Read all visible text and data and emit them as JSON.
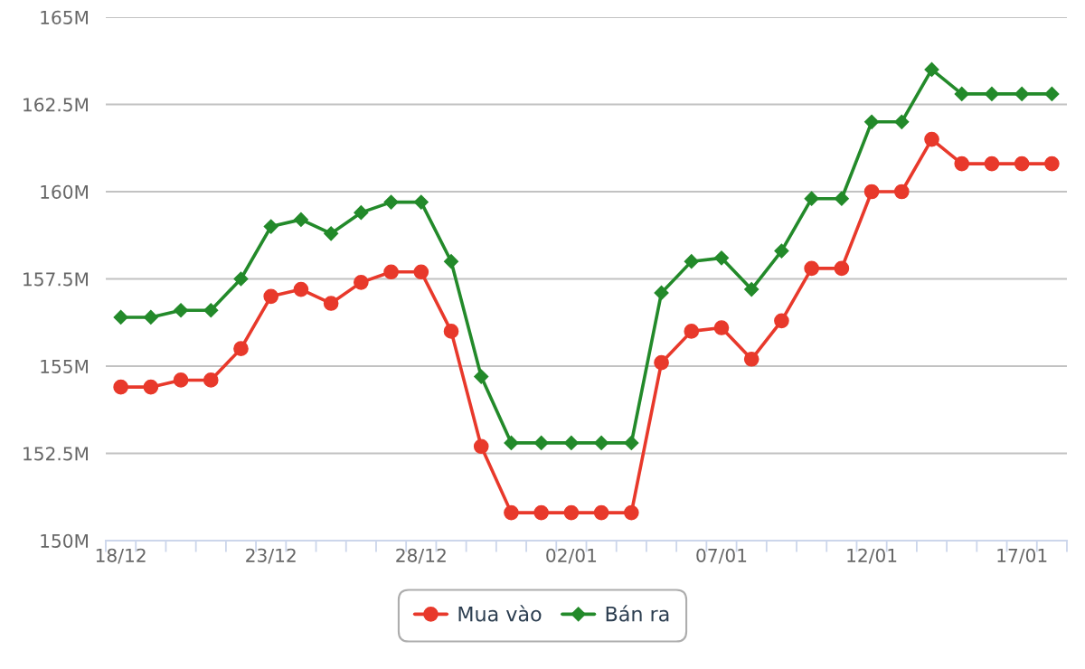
{
  "chart_data": {
    "type": "line",
    "categories": [
      "18/12",
      null,
      null,
      null,
      null,
      "23/12",
      null,
      null,
      null,
      null,
      "28/12",
      null,
      null,
      null,
      null,
      "02/01",
      null,
      null,
      null,
      null,
      "07/01",
      null,
      null,
      null,
      null,
      "12/01",
      null,
      null,
      null,
      null,
      "17/01",
      null
    ],
    "series": [
      {
        "name": "Mua vào",
        "color": "#e8392b",
        "marker": "circle",
        "values": [
          154.4,
          154.4,
          154.6,
          154.6,
          155.5,
          157.0,
          157.2,
          156.8,
          157.4,
          157.7,
          157.7,
          156.0,
          152.7,
          150.8,
          150.8,
          150.8,
          150.8,
          150.8,
          155.1,
          156.0,
          156.1,
          155.2,
          156.3,
          157.8,
          157.8,
          160.0,
          160.0,
          161.5,
          160.8,
          160.8,
          160.8,
          160.8
        ]
      },
      {
        "name": "Bán ra",
        "color": "#238a2a",
        "marker": "diamond",
        "values": [
          156.4,
          156.4,
          156.6,
          156.6,
          157.5,
          159.0,
          159.2,
          158.8,
          159.4,
          159.7,
          159.7,
          158.0,
          154.7,
          152.8,
          152.8,
          152.8,
          152.8,
          152.8,
          157.1,
          158.0,
          158.1,
          157.2,
          158.3,
          159.8,
          159.8,
          162.0,
          162.0,
          163.5,
          162.8,
          162.8,
          162.8,
          162.8
        ]
      }
    ],
    "ylim": [
      150,
      165
    ],
    "yticks": [
      {
        "value": 150,
        "label": "150M"
      },
      {
        "value": 152.5,
        "label": "152.5M"
      },
      {
        "value": 155,
        "label": "155M"
      },
      {
        "value": 157.5,
        "label": "157.5M"
      },
      {
        "value": 160,
        "label": "160M"
      },
      {
        "value": 162.5,
        "label": "162.5M"
      },
      {
        "value": 165,
        "label": "165M"
      }
    ],
    "grid": "y",
    "legend": "bottom",
    "line_style": "solid"
  }
}
